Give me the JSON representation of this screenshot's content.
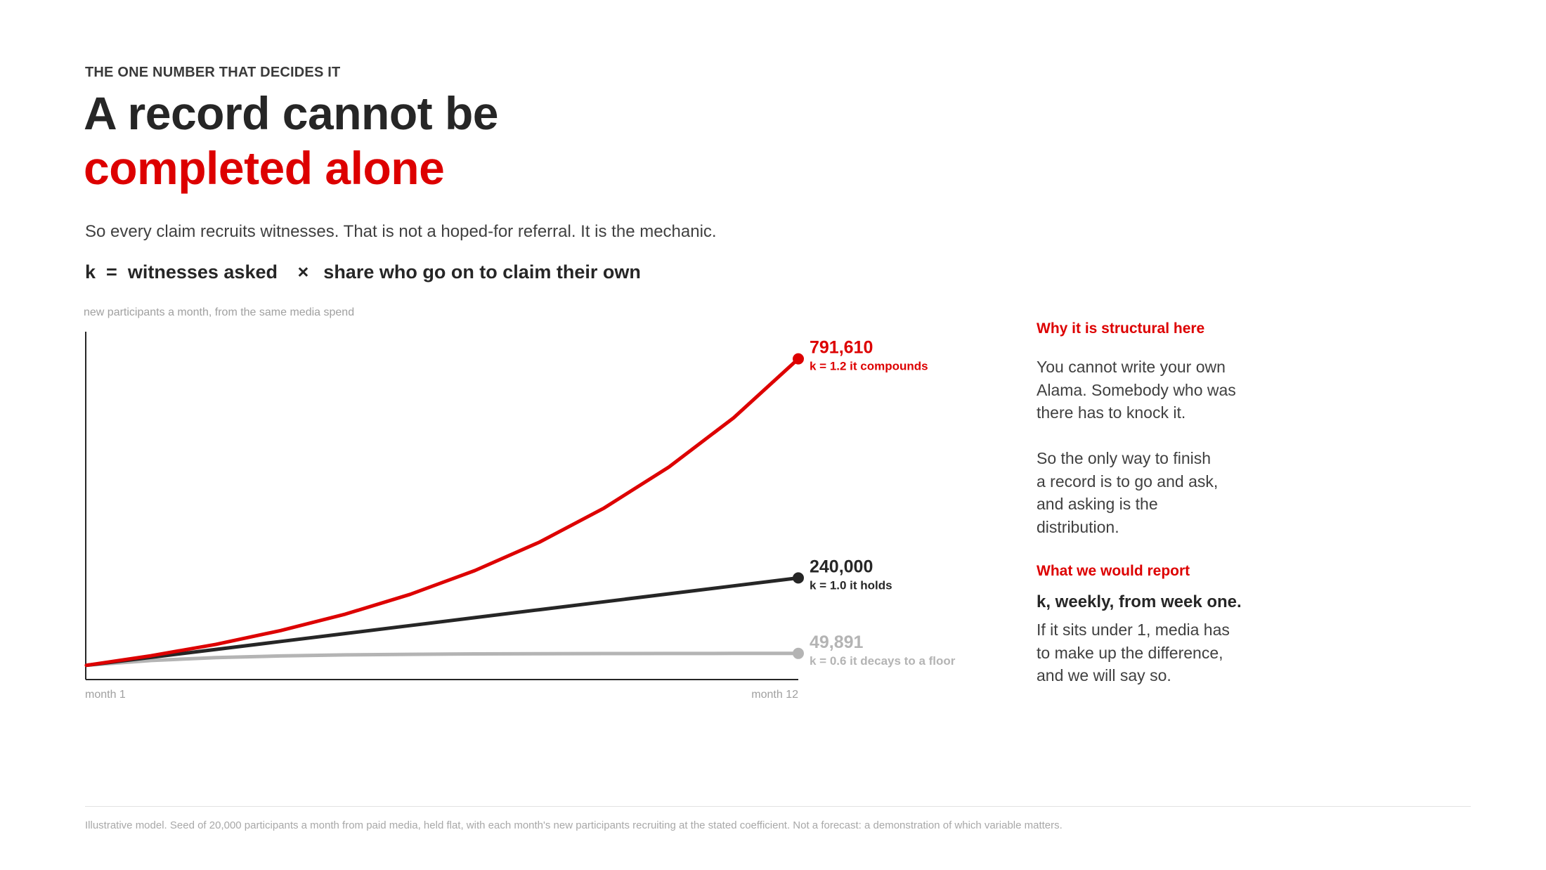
{
  "header": {
    "eyebrow": "THE ONE NUMBER THAT DECIDES IT",
    "title_line1": "A record cannot be",
    "title_line2": "completed alone",
    "subtitle": "So every claim recruits witnesses. That is not a hoped-for referral. It is the mechanic.",
    "formula": {
      "lhs": "k",
      "equals": "=",
      "term1": "witnesses asked",
      "times": "×",
      "term2": "share who go on to claim their own"
    }
  },
  "chart_data": {
    "type": "line",
    "title": "new participants a month, from the same media spend",
    "x_labels": {
      "start": "month 1",
      "end": "month 12"
    },
    "x": [
      1,
      2,
      3,
      4,
      5,
      6,
      7,
      8,
      9,
      10,
      11,
      12
    ],
    "ylim": [
      0,
      860000
    ],
    "grid": false,
    "series": [
      {
        "k": "k = 1.2",
        "note": "it compounds",
        "end_label": "791,610",
        "color": "#dd0000",
        "values": [
          20000,
          44000,
          72800,
          107360,
          148832,
          198598,
          258318,
          329982,
          415978,
          519174,
          643009,
          791610
        ]
      },
      {
        "k": "k = 1.0",
        "note": "it holds",
        "end_label": "240,000",
        "color": "#262626",
        "values": [
          20000,
          40000,
          60000,
          80000,
          100000,
          120000,
          140000,
          160000,
          180000,
          200000,
          220000,
          240000
        ]
      },
      {
        "k": "k = 0.6",
        "note": "it decays to a floor",
        "end_label": "49,891",
        "color": "#b4b4b4",
        "values": [
          20000,
          32000,
          39200,
          43520,
          46112,
          47667,
          48600,
          49160,
          49496,
          49698,
          49819,
          49891
        ]
      }
    ]
  },
  "sidebar": {
    "heading1": "Why it is structural here",
    "para1_lines": [
      "You cannot write your own",
      "Alama. Somebody who was",
      "there has to knock it."
    ],
    "para2_lines": [
      "So the only way to finish",
      "a record is to go and ask,",
      "and asking is the",
      "distribution."
    ],
    "heading2": "What we would report",
    "strong": "k, weekly, from week one.",
    "para3_lines": [
      "If it sits under 1, media has",
      "to make up the difference,",
      "and we will say so."
    ]
  },
  "footnote": "Illustrative model. Seed of 20,000 participants a month from paid media, held flat, with each month's new participants recruiting at the stated coefficient. Not a forecast: a demonstration of which variable matters."
}
